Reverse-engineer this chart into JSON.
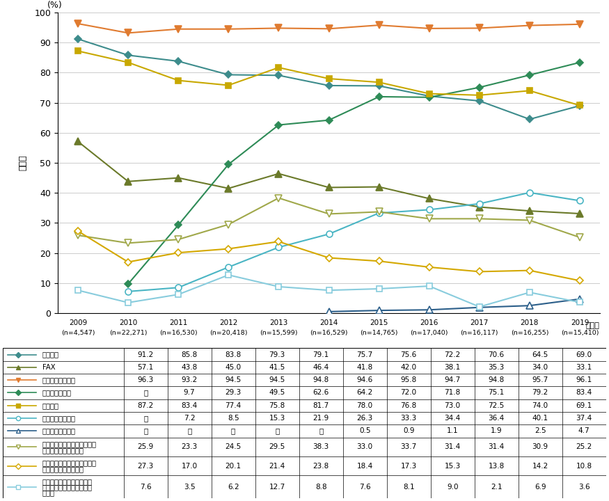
{
  "years": [
    2009,
    2010,
    2011,
    2012,
    2013,
    2014,
    2015,
    2016,
    2017,
    2018,
    2019
  ],
  "x_labels_top": [
    "2009",
    "2010",
    "2011",
    "2012",
    "2013",
    "2014",
    "2015",
    "2016",
    "2017",
    "2018",
    "2019"
  ],
  "x_labels_bot": [
    "(n=4,547)",
    "(n=22,271)",
    "(n=16,530)",
    "(n=20,418)",
    "(n=15,599)",
    "(n=16,529)",
    "(n=14,765)",
    "(n=17,040)",
    "(n=16,117)",
    "(n=16,255)",
    "(n=15,410)"
  ],
  "series": [
    {
      "name": "固定電話",
      "values": [
        91.2,
        85.8,
        83.8,
        79.3,
        79.1,
        75.7,
        75.6,
        72.2,
        70.6,
        64.5,
        69.0
      ],
      "color": "#3d8c8c",
      "marker": "D",
      "marker_filled": true,
      "markersize": 5.5
    },
    {
      "name": "FAX",
      "values": [
        57.1,
        43.8,
        45.0,
        41.5,
        46.4,
        41.8,
        42.0,
        38.1,
        35.3,
        34.0,
        33.1
      ],
      "color": "#6b7a2a",
      "marker": "^",
      "marker_filled": true,
      "markersize": 6.5
    },
    {
      "name": "モバイル端末全体",
      "values": [
        96.3,
        93.2,
        94.5,
        94.5,
        94.8,
        94.6,
        95.8,
        94.7,
        94.8,
        95.7,
        96.1
      ],
      "color": "#e07b30",
      "marker": "v",
      "marker_filled": true,
      "markersize": 7
    },
    {
      "name": "スマートフォン",
      "values": [
        null,
        9.7,
        29.3,
        49.5,
        62.6,
        64.2,
        72.0,
        71.8,
        75.1,
        79.2,
        83.4
      ],
      "color": "#2e8b57",
      "marker": "D",
      "marker_filled": true,
      "markersize": 5.5
    },
    {
      "name": "パソコン",
      "values": [
        87.2,
        83.4,
        77.4,
        75.8,
        81.7,
        78.0,
        76.8,
        73.0,
        72.5,
        74.0,
        69.1
      ],
      "color": "#c8a800",
      "marker": "s",
      "marker_filled": true,
      "markersize": 5.5
    },
    {
      "name": "タブレット型端末",
      "values": [
        null,
        7.2,
        8.5,
        15.3,
        21.9,
        26.3,
        33.3,
        34.4,
        36.4,
        40.1,
        37.4
      ],
      "color": "#4ab5c4",
      "marker": "o",
      "marker_filled": false,
      "markersize": 6.5
    },
    {
      "name": "ウェアラブル端末",
      "values": [
        null,
        null,
        null,
        null,
        null,
        0.5,
        0.9,
        1.1,
        1.9,
        2.5,
        4.7
      ],
      "color": "#2c5f8a",
      "marker": "^",
      "marker_filled": false,
      "markersize": 6.5
    },
    {
      "name": "インターネットに接続できる家庭用テレビゲーム機",
      "values": [
        25.9,
        23.3,
        24.5,
        29.5,
        38.3,
        33.0,
        33.7,
        31.4,
        31.4,
        30.9,
        25.2
      ],
      "color": "#a0a84a",
      "marker": "v",
      "marker_filled": false,
      "markersize": 7
    },
    {
      "name": "インターネットに接続できる携帯型音楽プレイヤー",
      "values": [
        27.3,
        17.0,
        20.1,
        21.4,
        23.8,
        18.4,
        17.3,
        15.3,
        13.8,
        14.2,
        10.8
      ],
      "color": "#d4a800",
      "marker": "D",
      "marker_filled": false,
      "markersize": 5.5
    },
    {
      "name": "その他インターネットに接続できる家電（スマート家電）等",
      "values": [
        7.6,
        3.5,
        6.2,
        12.7,
        8.8,
        7.6,
        8.1,
        9.0,
        2.1,
        6.9,
        3.6
      ],
      "color": "#88ccdd",
      "marker": "s",
      "marker_filled": false,
      "markersize": 5.5
    }
  ],
  "ylabel": "保有率",
  "yunits": "(%)",
  "year_unit": "（年）",
  "ylim": [
    0,
    100
  ],
  "yticks": [
    0,
    10,
    20,
    30,
    40,
    50,
    60,
    70,
    80,
    90,
    100
  ],
  "bg_color": "#ffffff",
  "grid_color": "#cccccc",
  "table_rows": [
    {
      "label_lines": [
        "固定電話"
      ],
      "values": [
        "91.2",
        "85.8",
        "83.8",
        "79.3",
        "79.1",
        "75.7",
        "75.6",
        "72.2",
        "70.6",
        "64.5",
        "69.0"
      ]
    },
    {
      "label_lines": [
        "FAX"
      ],
      "values": [
        "57.1",
        "43.8",
        "45.0",
        "41.5",
        "46.4",
        "41.8",
        "42.0",
        "38.1",
        "35.3",
        "34.0",
        "33.1"
      ]
    },
    {
      "label_lines": [
        "モバイル端末全体"
      ],
      "values": [
        "96.3",
        "93.2",
        "94.5",
        "94.5",
        "94.8",
        "94.6",
        "95.8",
        "94.7",
        "94.8",
        "95.7",
        "96.1"
      ]
    },
    {
      "label_lines": [
        "スマートフォン"
      ],
      "values": [
        "－",
        "9.7",
        "29.3",
        "49.5",
        "62.6",
        "64.2",
        "72.0",
        "71.8",
        "75.1",
        "79.2",
        "83.4"
      ]
    },
    {
      "label_lines": [
        "パソコン"
      ],
      "values": [
        "87.2",
        "83.4",
        "77.4",
        "75.8",
        "81.7",
        "78.0",
        "76.8",
        "73.0",
        "72.5",
        "74.0",
        "69.1"
      ]
    },
    {
      "label_lines": [
        "タブレット型端末"
      ],
      "values": [
        "－",
        "7.2",
        "8.5",
        "15.3",
        "21.9",
        "26.3",
        "33.3",
        "34.4",
        "36.4",
        "40.1",
        "37.4"
      ]
    },
    {
      "label_lines": [
        "ウェアラブル端末"
      ],
      "values": [
        "－",
        "－",
        "－",
        "－",
        "－",
        "0.5",
        "0.9",
        "1.1",
        "1.9",
        "2.5",
        "4.7"
      ]
    },
    {
      "label_lines": [
        "インターネットに接続できる",
        "家庭用テレビゲーム機"
      ],
      "values": [
        "25.9",
        "23.3",
        "24.5",
        "29.5",
        "38.3",
        "33.0",
        "33.7",
        "31.4",
        "31.4",
        "30.9",
        "25.2"
      ]
    },
    {
      "label_lines": [
        "インターネットに接続できる",
        "携帯型音楽プレイヤー"
      ],
      "values": [
        "27.3",
        "17.0",
        "20.1",
        "21.4",
        "23.8",
        "18.4",
        "17.3",
        "15.3",
        "13.8",
        "14.2",
        "10.8"
      ]
    },
    {
      "label_lines": [
        "その他インターネットに接",
        "続できる家電（スマート家",
        "電）等"
      ],
      "values": [
        "7.6",
        "3.5",
        "6.2",
        "12.7",
        "8.8",
        "7.6",
        "8.1",
        "9.0",
        "2.1",
        "6.9",
        "3.6"
      ]
    }
  ]
}
